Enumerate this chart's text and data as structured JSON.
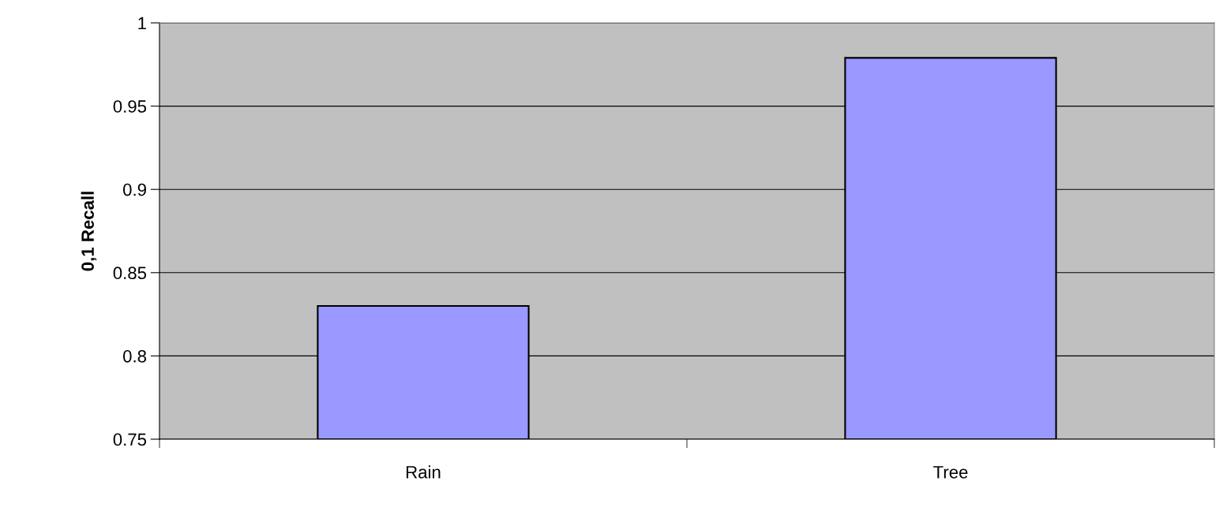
{
  "chart_data": {
    "type": "bar",
    "ylabel": "0,1 Recall",
    "categories": [
      "Rain",
      "Tree"
    ],
    "values": [
      0.83,
      0.979
    ],
    "color": "#9999ff",
    "ylim": [
      0.75,
      1
    ],
    "yticks": [
      0.75,
      0.8,
      0.85,
      0.9,
      0.95,
      1
    ],
    "grid": "y"
  }
}
